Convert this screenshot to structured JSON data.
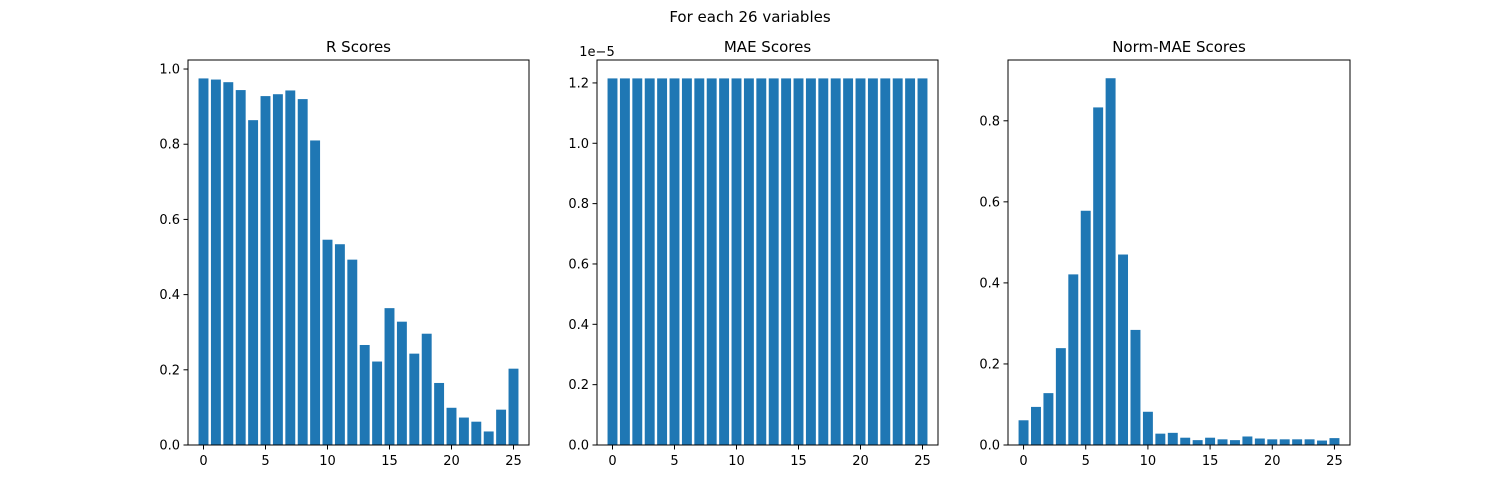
{
  "figure": {
    "suptitle": "For each  26 variables"
  },
  "colors": {
    "bar": "#1f77b4",
    "axis": "#000000",
    "background": "#ffffff"
  },
  "chart_data": [
    {
      "type": "bar",
      "title": "R Scores",
      "xlabel": "",
      "ylabel": "",
      "x": [
        0,
        1,
        2,
        3,
        4,
        5,
        6,
        7,
        8,
        9,
        10,
        11,
        12,
        13,
        14,
        15,
        16,
        17,
        18,
        19,
        20,
        21,
        22,
        23,
        24,
        25
      ],
      "values": [
        0.975,
        0.972,
        0.965,
        0.944,
        0.864,
        0.928,
        0.933,
        0.943,
        0.92,
        0.81,
        0.546,
        0.534,
        0.493,
        0.266,
        0.222,
        0.364,
        0.328,
        0.243,
        0.296,
        0.165,
        0.099,
        0.073,
        0.062,
        0.036,
        0.094,
        0.203
      ],
      "xlim": [
        -1.25,
        26.25
      ],
      "ylim": [
        0,
        1.024
      ],
      "xticks": [
        0,
        5,
        10,
        15,
        20,
        25
      ],
      "xtick_labels": [
        "0",
        "5",
        "10",
        "15",
        "20",
        "25"
      ],
      "yticks": [
        0,
        0.2,
        0.4,
        0.6,
        0.8,
        1.0
      ],
      "ytick_labels": [
        "0.0",
        "0.2",
        "0.4",
        "0.6",
        "0.8",
        "1.0"
      ],
      "offset_label": "",
      "grid": false
    },
    {
      "type": "bar",
      "title": "MAE Scores",
      "xlabel": "",
      "ylabel": "",
      "x": [
        0,
        1,
        2,
        3,
        4,
        5,
        6,
        7,
        8,
        9,
        10,
        11,
        12,
        13,
        14,
        15,
        16,
        17,
        18,
        19,
        20,
        21,
        22,
        23,
        24,
        25
      ],
      "values": [
        1.215e-05,
        1.215e-05,
        1.215e-05,
        1.215e-05,
        1.215e-05,
        1.215e-05,
        1.215e-05,
        1.215e-05,
        1.215e-05,
        1.215e-05,
        1.215e-05,
        1.215e-05,
        1.215e-05,
        1.215e-05,
        1.215e-05,
        1.215e-05,
        1.215e-05,
        1.215e-05,
        1.215e-05,
        1.215e-05,
        1.215e-05,
        1.215e-05,
        1.215e-05,
        1.215e-05,
        1.215e-05,
        1.215e-05
      ],
      "xlim": [
        -1.25,
        26.25
      ],
      "ylim": [
        0,
        1.276e-05
      ],
      "xticks": [
        0,
        5,
        10,
        15,
        20,
        25
      ],
      "xtick_labels": [
        "0",
        "5",
        "10",
        "15",
        "20",
        "25"
      ],
      "yticks": [
        0,
        2e-06,
        4e-06,
        6e-06,
        8e-06,
        1e-05,
        1.2e-05
      ],
      "ytick_labels": [
        "0.0",
        "0.2",
        "0.4",
        "0.6",
        "0.8",
        "1.0",
        "1.2"
      ],
      "offset_label": "1e−5",
      "grid": false
    },
    {
      "type": "bar",
      "title": "Norm-MAE Scores",
      "xlabel": "",
      "ylabel": "",
      "x": [
        0,
        1,
        2,
        3,
        4,
        5,
        6,
        7,
        8,
        9,
        10,
        11,
        12,
        13,
        14,
        15,
        16,
        17,
        18,
        19,
        20,
        21,
        22,
        23,
        24,
        25
      ],
      "values": [
        0.061,
        0.094,
        0.128,
        0.239,
        0.421,
        0.578,
        0.833,
        0.905,
        0.47,
        0.284,
        0.082,
        0.028,
        0.03,
        0.018,
        0.012,
        0.018,
        0.014,
        0.012,
        0.021,
        0.016,
        0.014,
        0.014,
        0.014,
        0.014,
        0.011,
        0.017
      ],
      "xlim": [
        -1.25,
        26.25
      ],
      "ylim": [
        0,
        0.95
      ],
      "xticks": [
        0,
        5,
        10,
        15,
        20,
        25
      ],
      "xtick_labels": [
        "0",
        "5",
        "10",
        "15",
        "20",
        "25"
      ],
      "yticks": [
        0,
        0.2,
        0.4,
        0.6,
        0.8
      ],
      "ytick_labels": [
        "0.0",
        "0.2",
        "0.4",
        "0.6",
        "0.8"
      ],
      "offset_label": "",
      "grid": false
    }
  ]
}
